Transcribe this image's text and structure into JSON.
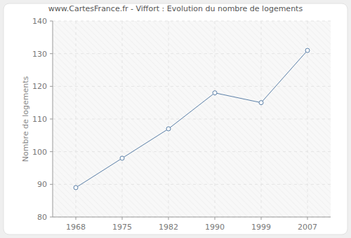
{
  "chart_data": {
    "type": "line",
    "title": "www.CartesFrance.fr - Viffort : Evolution du nombre de logements",
    "y_label": "Nombre de logements",
    "categories": [
      "1968",
      "1975",
      "1982",
      "1990",
      "1999",
      "2007"
    ],
    "values": [
      89,
      98,
      107,
      118,
      115,
      131
    ],
    "color": "#5b80a8",
    "marker": "circle",
    "ylim": [
      80,
      140
    ],
    "yticks": [
      80,
      90,
      100,
      110,
      120,
      130,
      140
    ],
    "grid": true
  }
}
